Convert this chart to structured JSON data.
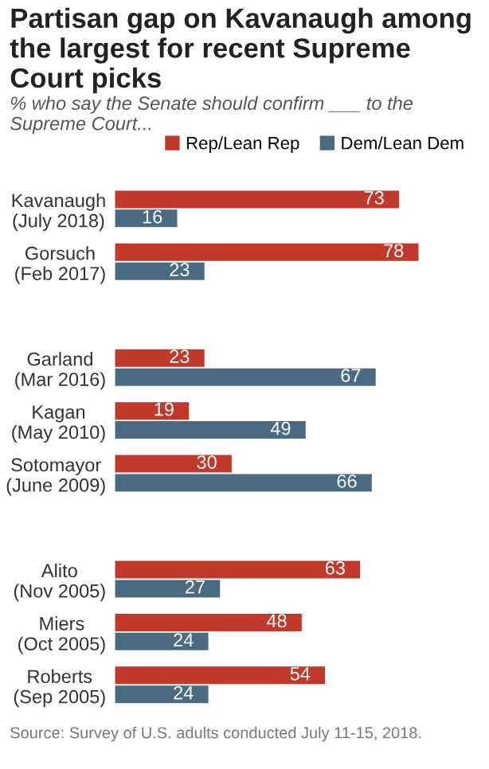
{
  "chart_data": {
    "type": "bar",
    "orientation": "horizontal",
    "title": "Partisan gap on Kavanaugh among the largest for recent Supreme Court picks",
    "subtitle": "% who say the Senate should confirm ___ to the Supreme Court...",
    "categories": [
      "Kavanaugh\n(July 2018)",
      "Gorsuch\n(Feb 2017)",
      null,
      "Garland\n(Mar 2016)",
      "Kagan\n(May 2010)",
      "Sotomayor\n(June 2009)",
      null,
      "Alito\n(Nov 2005)",
      "Miers\n(Oct 2005)",
      "Roberts\n(Sep 2005)"
    ],
    "series": [
      {
        "name": "Rep/Lean Rep",
        "color": "#c0392b",
        "values": [
          73,
          78,
          null,
          23,
          19,
          30,
          null,
          63,
          48,
          54
        ]
      },
      {
        "name": "Dem/Lean Dem",
        "color": "#4a6b82",
        "values": [
          16,
          23,
          null,
          67,
          49,
          66,
          null,
          27,
          24,
          24
        ]
      }
    ],
    "data_labels": true,
    "legend": "top",
    "grid": false,
    "annotations": [
      "Source: Survey of U.S. adults conducted July 11-15, 2018."
    ]
  }
}
